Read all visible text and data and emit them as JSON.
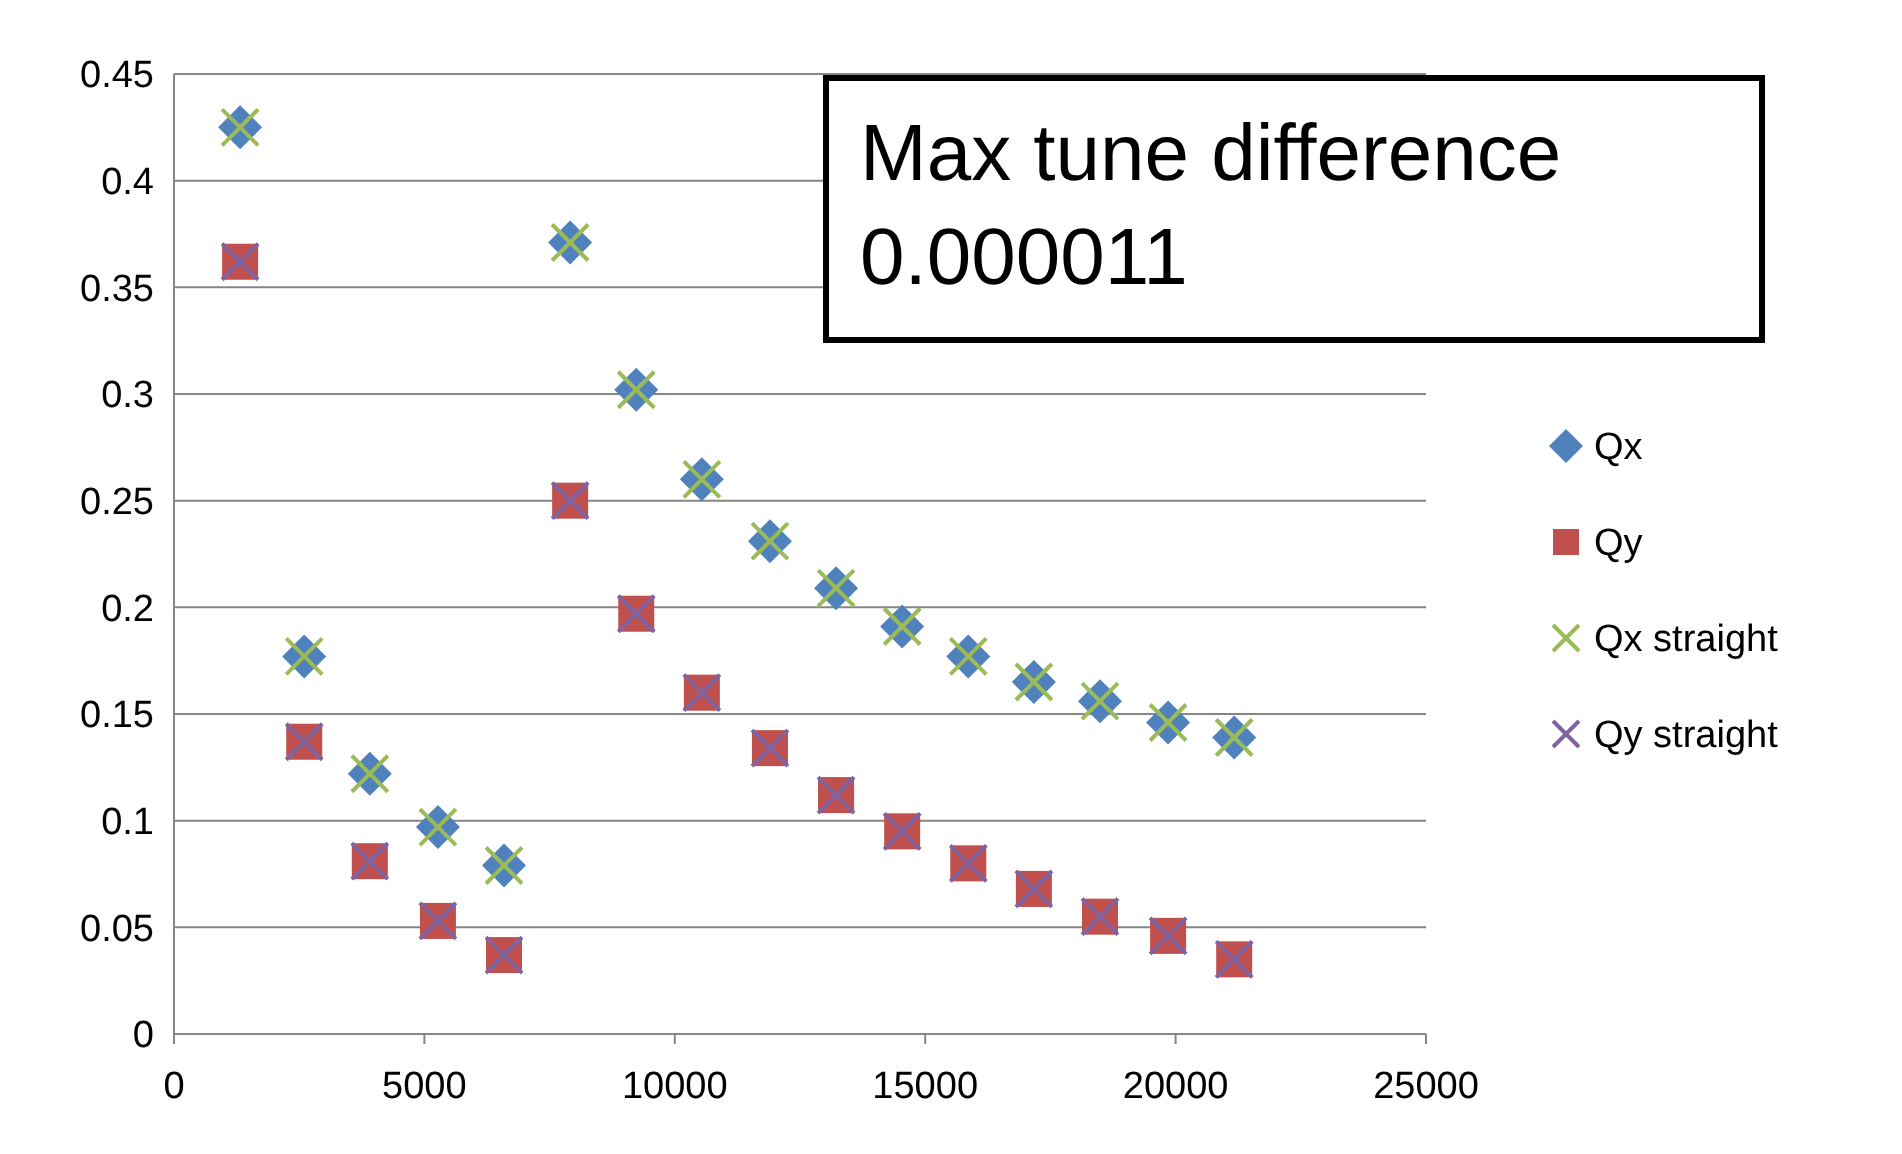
{
  "chart_data": {
    "type": "scatter",
    "xlim": [
      0,
      25000
    ],
    "xticks": [
      0,
      5000,
      10000,
      15000,
      20000,
      25000
    ],
    "ylim": [
      0,
      0.45
    ],
    "yticks": [
      0,
      0.05,
      0.1,
      0.15,
      0.2,
      0.25,
      0.3,
      0.35,
      0.4,
      0.45
    ],
    "grid": "y",
    "legend": "right",
    "x": [
      1320,
      2600,
      3910,
      5270,
      6590,
      7910,
      9230,
      10540,
      11900,
      13220,
      14540,
      15860,
      17170,
      18490,
      19850,
      21170
    ],
    "annotations": [
      "Max tune difference\n0.000011"
    ],
    "series": [
      {
        "name": "Qx",
        "color": "#4f81bd",
        "marker": "diamond",
        "values": [
          0.425,
          0.177,
          0.122,
          0.097,
          0.079,
          0.371,
          0.302,
          0.26,
          0.231,
          0.209,
          0.191,
          0.177,
          0.165,
          0.156,
          0.146,
          0.139
        ]
      },
      {
        "name": "Qy",
        "color": "#c0504d",
        "marker": "square",
        "values": [
          0.362,
          0.137,
          0.081,
          0.053,
          0.037,
          0.25,
          0.197,
          0.16,
          0.134,
          0.112,
          0.095,
          0.08,
          0.068,
          0.055,
          0.046,
          0.035
        ]
      },
      {
        "name": "Qx straight",
        "color": "#9bbb59",
        "marker": "cross",
        "values": [
          0.425,
          0.177,
          0.122,
          0.097,
          0.079,
          0.371,
          0.302,
          0.26,
          0.231,
          0.209,
          0.191,
          0.177,
          0.165,
          0.156,
          0.146,
          0.139
        ]
      },
      {
        "name": "Qy straight",
        "color": "#8064a2",
        "marker": "cross",
        "values": [
          0.362,
          0.137,
          0.081,
          0.053,
          0.037,
          0.25,
          0.197,
          0.16,
          0.134,
          0.112,
          0.095,
          0.08,
          0.068,
          0.055,
          0.046,
          0.035
        ]
      }
    ]
  }
}
